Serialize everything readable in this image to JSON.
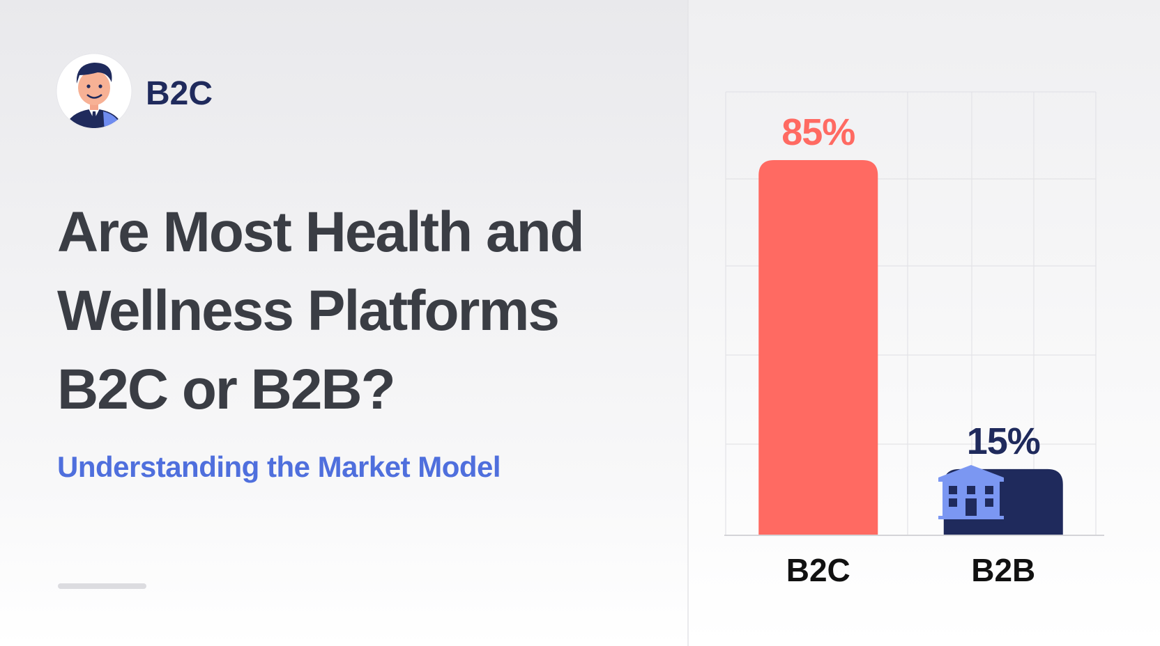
{
  "badge": {
    "label": "B2C"
  },
  "header": {
    "title": [
      "Are Most Health and",
      "Wellness Platforms",
      "B2C or B2B?"
    ],
    "subtitle": "Understanding the Market Model"
  },
  "chart_data": {
    "type": "bar",
    "categories": [
      "B2C",
      "B2B"
    ],
    "values": [
      85,
      15
    ],
    "value_labels": [
      "85%",
      "15%"
    ],
    "colors": [
      "#ff6a62",
      "#1f2a5c"
    ]
  }
}
